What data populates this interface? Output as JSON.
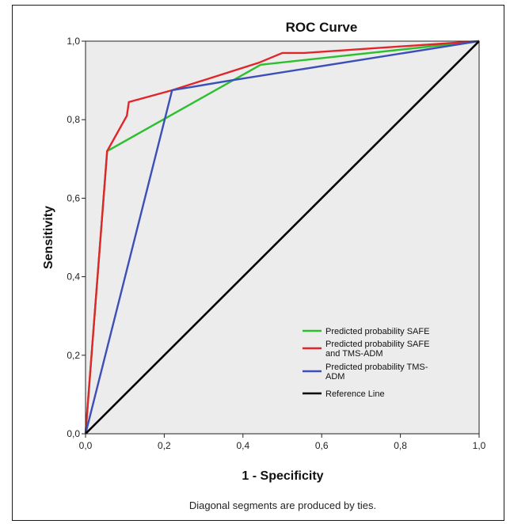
{
  "chart_data": {
    "type": "line",
    "title": "ROC Curve",
    "xlabel": "1 - Specificity",
    "ylabel": "Sensitivity",
    "xlim": [
      0,
      1
    ],
    "ylim": [
      0,
      1
    ],
    "xticks": [
      "0,0",
      "0,2",
      "0,4",
      "0,6",
      "0,8",
      "1,0"
    ],
    "yticks": [
      "0,0",
      "0,2",
      "0,4",
      "0,6",
      "0,8",
      "1,0"
    ],
    "grid": false,
    "legend_position": "bottom-right",
    "plot_background": "#ececec",
    "series": [
      {
        "name": "Predicted probability SAFE",
        "color": "#2dbf2d",
        "x": [
          0.0,
          0.055,
          0.445,
          1.0
        ],
        "y": [
          0.0,
          0.72,
          0.94,
          1.0
        ]
      },
      {
        "name": "Predicted probability SAFE\nand TMS-ADM",
        "color": "#e0262b",
        "x": [
          0.0,
          0.055,
          0.105,
          0.11,
          0.22,
          0.44,
          0.5,
          0.555,
          1.0
        ],
        "y": [
          0.0,
          0.72,
          0.81,
          0.845,
          0.875,
          0.945,
          0.97,
          0.97,
          1.0
        ]
      },
      {
        "name": "Predicted probability TMS-\nADM",
        "color": "#3b4fb8",
        "x": [
          0.0,
          0.22,
          0.37,
          1.0
        ],
        "y": [
          0.0,
          0.875,
          0.9,
          1.0
        ]
      },
      {
        "name": "Reference Line",
        "color": "#000000",
        "x": [
          0.0,
          1.0
        ],
        "y": [
          0.0,
          1.0
        ]
      }
    ],
    "footnote": "Diagonal segments are produced by ties."
  }
}
